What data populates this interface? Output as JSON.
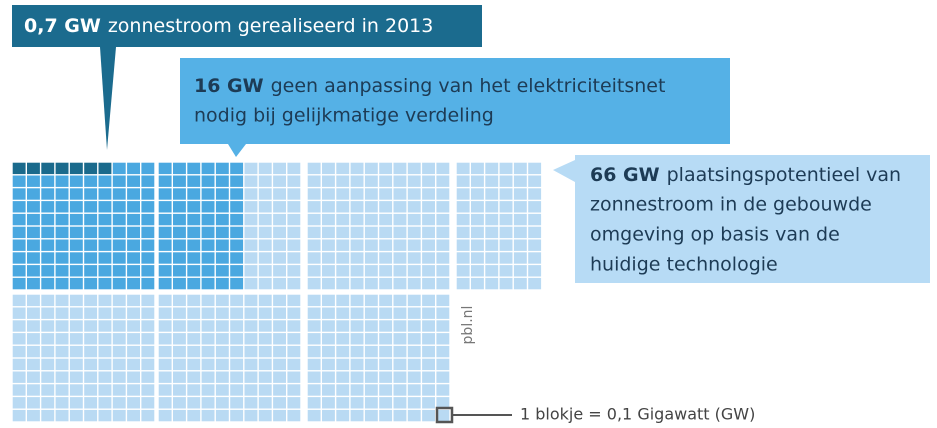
{
  "chart_data": {
    "type": "waffle",
    "block_value": 0.1,
    "legend": "1 blokje = 0,1 Gigawatt (GW)",
    "source": "pbl.nl",
    "series": [
      {
        "value": 0.7,
        "value_label": "0,7 GW",
        "lines": [
          "zonnestroom gerealiseerd in 2013"
        ],
        "color": "#1a6a8c"
      },
      {
        "value": 16,
        "value_label": "16 GW",
        "lines": [
          "geen aanpassing van het elektriciteitsnet",
          "nodig bij gelijkmatige verdeling"
        ],
        "color": "#4aa8e0"
      },
      {
        "value": 66,
        "value_label": "66 GW",
        "lines": [
          "plaatsingspotentieel van",
          "zonnestroom in de gebouwde",
          "omgeving op basis van de",
          "huidige technologie"
        ],
        "color": "#b9daf3"
      }
    ]
  }
}
